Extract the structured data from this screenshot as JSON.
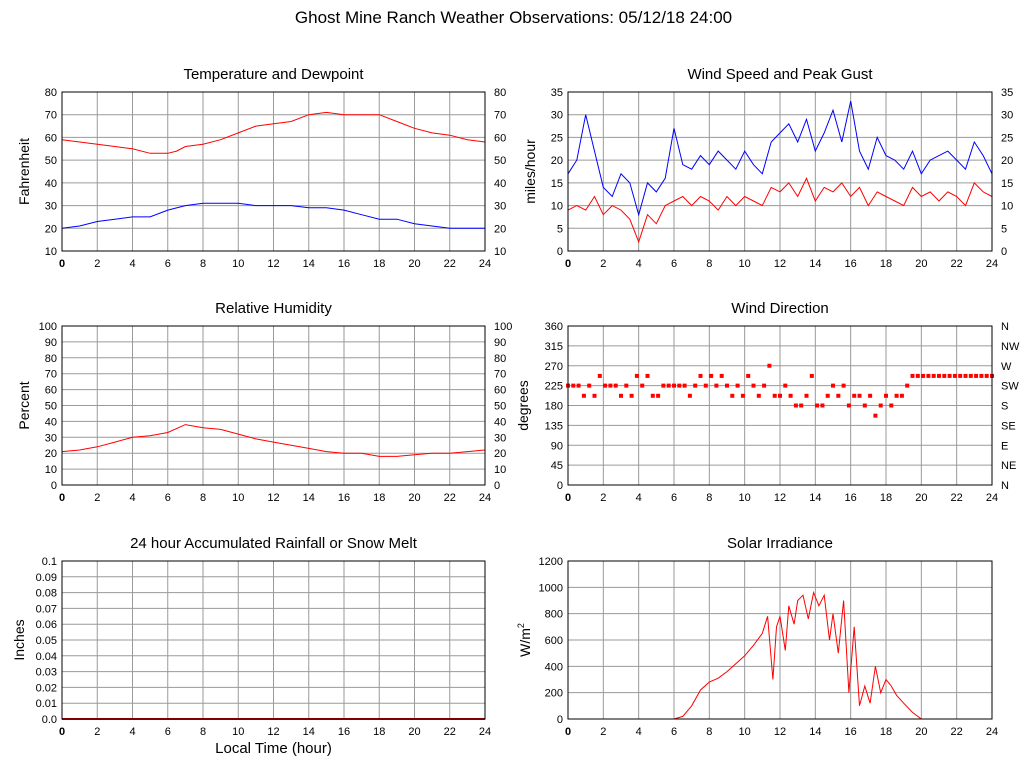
{
  "page": {
    "title": "Ghost Mine Ranch Weather Observations: 05/12/18 24:00"
  },
  "chart_data": [
    {
      "id": "temp",
      "type": "line",
      "title": "Temperature and Dewpoint",
      "ylabel": "Fahrenheit",
      "xlabel": "",
      "xlim": [
        0,
        24
      ],
      "ylim": [
        10,
        80
      ],
      "x_ticks": [
        0,
        2,
        4,
        6,
        8,
        10,
        12,
        14,
        16,
        18,
        20,
        22,
        24
      ],
      "y_ticks": [
        10,
        20,
        30,
        40,
        50,
        60,
        70,
        80
      ],
      "right_ticks": [
        "10",
        "20",
        "30",
        "40",
        "50",
        "60",
        "70",
        "80"
      ],
      "grid": true,
      "series": [
        {
          "color": "#ff0000",
          "x": [
            0,
            1,
            2,
            3,
            4,
            5,
            6,
            6.5,
            7,
            8,
            9,
            10,
            11,
            12,
            13,
            14,
            15,
            16,
            17,
            18,
            19,
            20,
            21,
            22,
            23,
            24
          ],
          "y": [
            59,
            58,
            57,
            56,
            55,
            53,
            53,
            54,
            56,
            57,
            59,
            62,
            65,
            66,
            67,
            70,
            71,
            70,
            70,
            70,
            67,
            64,
            62,
            61,
            59,
            58
          ]
        },
        {
          "color": "#0000ff",
          "x": [
            0,
            1,
            2,
            3,
            4,
            5,
            6,
            7,
            8,
            9,
            10,
            11,
            12,
            13,
            14,
            15,
            16,
            17,
            18,
            19,
            20,
            21,
            22,
            23,
            24
          ],
          "y": [
            20,
            21,
            23,
            24,
            25,
            25,
            28,
            30,
            31,
            31,
            31,
            30,
            30,
            30,
            29,
            29,
            28,
            26,
            24,
            24,
            22,
            21,
            20,
            20,
            20
          ]
        }
      ]
    },
    {
      "id": "wind",
      "type": "line",
      "title": "Wind Speed and Peak Gust",
      "ylabel": "miles/hour",
      "xlabel": "",
      "xlim": [
        0,
        24
      ],
      "ylim": [
        0,
        35
      ],
      "x_ticks": [
        0,
        2,
        4,
        6,
        8,
        10,
        12,
        14,
        16,
        18,
        20,
        22,
        24
      ],
      "y_ticks": [
        0,
        5,
        10,
        15,
        20,
        25,
        30,
        35
      ],
      "right_ticks": [
        "0",
        "5",
        "10",
        "15",
        "20",
        "25",
        "30",
        "35"
      ],
      "grid": true,
      "series": [
        {
          "color": "#0000ff",
          "x": [
            0,
            0.5,
            1,
            1.5,
            2,
            2.5,
            3,
            3.5,
            4,
            4.5,
            5,
            5.5,
            6,
            6.5,
            7,
            7.5,
            8,
            8.5,
            9,
            9.5,
            10,
            10.5,
            11,
            11.5,
            12,
            12.5,
            13,
            13.5,
            14,
            14.5,
            15,
            15.5,
            16,
            16.5,
            17,
            17.5,
            18,
            18.5,
            19,
            19.5,
            20,
            20.5,
            21,
            21.5,
            22,
            22.5,
            23,
            23.5,
            24
          ],
          "y": [
            17,
            20,
            30,
            22,
            14,
            12,
            17,
            15,
            8,
            15,
            13,
            16,
            27,
            19,
            18,
            21,
            19,
            22,
            20,
            18,
            22,
            19,
            17,
            24,
            26,
            28,
            24,
            29,
            22,
            26,
            31,
            24,
            33,
            22,
            18,
            25,
            21,
            20,
            18,
            22,
            17,
            20,
            21,
            22,
            20,
            18,
            24,
            21,
            17
          ]
        },
        {
          "color": "#ff0000",
          "x": [
            0,
            0.5,
            1,
            1.5,
            2,
            2.5,
            3,
            3.5,
            4,
            4.5,
            5,
            5.5,
            6,
            6.5,
            7,
            7.5,
            8,
            8.5,
            9,
            9.5,
            10,
            10.5,
            11,
            11.5,
            12,
            12.5,
            13,
            13.5,
            14,
            14.5,
            15,
            15.5,
            16,
            16.5,
            17,
            17.5,
            18,
            18.5,
            19,
            19.5,
            20,
            20.5,
            21,
            21.5,
            22,
            22.5,
            23,
            23.5,
            24
          ],
          "y": [
            9,
            10,
            9,
            12,
            8,
            10,
            9,
            7,
            2,
            8,
            6,
            10,
            11,
            12,
            10,
            12,
            11,
            9,
            12,
            10,
            12,
            11,
            10,
            14,
            13,
            15,
            12,
            16,
            11,
            14,
            13,
            15,
            12,
            14,
            10,
            13,
            12,
            11,
            10,
            14,
            12,
            13,
            11,
            13,
            12,
            10,
            15,
            13,
            12
          ]
        }
      ]
    },
    {
      "id": "rh",
      "type": "line",
      "title": "Relative Humidity",
      "ylabel": "Percent",
      "xlabel": "",
      "xlim": [
        0,
        24
      ],
      "ylim": [
        0,
        100
      ],
      "x_ticks": [
        0,
        2,
        4,
        6,
        8,
        10,
        12,
        14,
        16,
        18,
        20,
        22,
        24
      ],
      "y_ticks": [
        0,
        10,
        20,
        30,
        40,
        50,
        60,
        70,
        80,
        90,
        100
      ],
      "right_ticks": [
        "0",
        "10",
        "20",
        "30",
        "40",
        "50",
        "60",
        "70",
        "80",
        "90",
        "100"
      ],
      "grid": true,
      "series": [
        {
          "color": "#ff0000",
          "x": [
            0,
            1,
            2,
            3,
            4,
            5,
            6,
            7,
            8,
            9,
            10,
            11,
            12,
            13,
            14,
            15,
            16,
            17,
            18,
            19,
            20,
            21,
            22,
            23,
            24
          ],
          "y": [
            21,
            22,
            24,
            27,
            30,
            31,
            33,
            38,
            36,
            35,
            32,
            29,
            27,
            25,
            23,
            21,
            20,
            20,
            18,
            18,
            19,
            20,
            20,
            21,
            22
          ]
        }
      ]
    },
    {
      "id": "dir",
      "type": "scatter",
      "title": "Wind Direction",
      "ylabel": "degrees",
      "xlabel": "",
      "xlim": [
        0,
        24
      ],
      "ylim": [
        0,
        360
      ],
      "x_ticks": [
        0,
        2,
        4,
        6,
        8,
        10,
        12,
        14,
        16,
        18,
        20,
        22,
        24
      ],
      "y_ticks": [
        0,
        45,
        90,
        135,
        180,
        225,
        270,
        315,
        360
      ],
      "right_ticks": [
        "N",
        "NE",
        "E",
        "SE",
        "S",
        "SW",
        "W",
        "NW",
        "N"
      ],
      "grid": true,
      "series": [
        {
          "color": "#ff0000",
          "x": [
            0,
            0.3,
            0.6,
            0.9,
            1.2,
            1.5,
            1.8,
            2.1,
            2.4,
            2.7,
            3,
            3.3,
            3.6,
            3.9,
            4.2,
            4.5,
            4.8,
            5.1,
            5.4,
            5.7,
            6,
            6.3,
            6.6,
            6.9,
            7.2,
            7.5,
            7.8,
            8.1,
            8.4,
            8.7,
            9,
            9.3,
            9.6,
            9.9,
            10.2,
            10.5,
            10.8,
            11.1,
            11.4,
            11.7,
            12,
            12.3,
            12.6,
            12.9,
            13.2,
            13.5,
            13.8,
            14.1,
            14.4,
            14.7,
            15,
            15.3,
            15.6,
            15.9,
            16.2,
            16.5,
            16.8,
            17.1,
            17.4,
            17.7,
            18,
            18.3,
            18.6,
            18.9,
            19.2,
            19.5,
            19.8,
            20.1,
            20.4,
            20.7,
            21,
            21.3,
            21.6,
            21.9,
            22.2,
            22.5,
            22.8,
            23.1,
            23.4,
            23.7,
            24
          ],
          "y": [
            225,
            225,
            225,
            202,
            225,
            202,
            247,
            225,
            225,
            225,
            202,
            225,
            202,
            247,
            225,
            247,
            202,
            202,
            225,
            225,
            225,
            225,
            225,
            202,
            225,
            247,
            225,
            247,
            225,
            247,
            225,
            202,
            225,
            202,
            247,
            225,
            202,
            225,
            270,
            202,
            202,
            225,
            202,
            180,
            180,
            202,
            247,
            180,
            180,
            202,
            225,
            202,
            225,
            180,
            202,
            202,
            180,
            202,
            157,
            180,
            202,
            180,
            202,
            202,
            225,
            247,
            247,
            247,
            247,
            247,
            247,
            247,
            247,
            247,
            247,
            247,
            247,
            247,
            247,
            247,
            247
          ]
        }
      ]
    },
    {
      "id": "rain",
      "type": "line",
      "title": "24 hour Accumulated Rainfall or Snow Melt",
      "ylabel": "Inches",
      "xlabel": "Local Time (hour)",
      "xlim": [
        0,
        24
      ],
      "ylim": [
        0,
        0.1
      ],
      "x_ticks": [
        0,
        2,
        4,
        6,
        8,
        10,
        12,
        14,
        16,
        18,
        20,
        22,
        24
      ],
      "y_ticks": [
        0,
        0.01,
        0.02,
        0.03,
        0.04,
        0.05,
        0.06,
        0.07,
        0.08,
        0.09,
        0.1
      ],
      "y_tick_labels": [
        "0.0",
        "0.01",
        "0.02",
        "0.03",
        "0.04",
        "0.05",
        "0.06",
        "0.07",
        "0.08",
        "0.09",
        "0.1"
      ],
      "grid": true,
      "series": [
        {
          "color": "#ff0000",
          "x": [
            0,
            24
          ],
          "y": [
            0,
            0
          ]
        }
      ]
    },
    {
      "id": "solar",
      "type": "line",
      "title": "Solar Irradiance",
      "ylabel": "W/m",
      "ylabel_sup": "2",
      "xlabel": "",
      "xlim": [
        0,
        24
      ],
      "ylim": [
        0,
        1200
      ],
      "x_ticks": [
        0,
        2,
        4,
        6,
        8,
        10,
        12,
        14,
        16,
        18,
        20,
        22,
        24
      ],
      "y_ticks": [
        0,
        200,
        400,
        600,
        800,
        1000,
        1200
      ],
      "grid": true,
      "series": [
        {
          "color": "#ff0000",
          "x": [
            0,
            6,
            6.5,
            7,
            7.5,
            8,
            8.5,
            9,
            9.5,
            10,
            10.5,
            11,
            11.3,
            11.6,
            11.8,
            12,
            12.3,
            12.5,
            12.8,
            13,
            13.3,
            13.6,
            13.9,
            14.2,
            14.5,
            14.8,
            15,
            15.3,
            15.6,
            15.9,
            16.2,
            16.5,
            16.8,
            17.1,
            17.4,
            17.7,
            18,
            18.3,
            18.6,
            19,
            19.5,
            20,
            24
          ],
          "y": [
            0,
            0,
            20,
            100,
            220,
            280,
            310,
            360,
            420,
            480,
            560,
            650,
            780,
            300,
            700,
            780,
            520,
            860,
            720,
            900,
            940,
            760,
            960,
            860,
            940,
            600,
            800,
            500,
            900,
            200,
            700,
            100,
            250,
            120,
            400,
            200,
            300,
            250,
            180,
            120,
            50,
            0,
            0
          ]
        }
      ]
    }
  ]
}
